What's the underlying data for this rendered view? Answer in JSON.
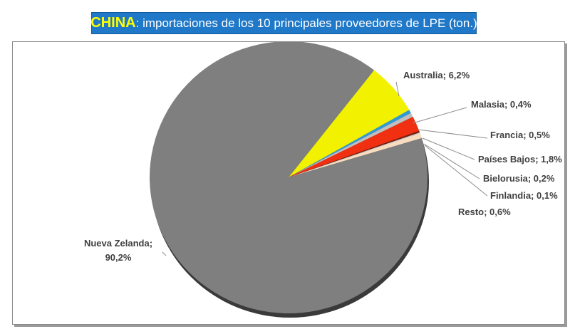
{
  "title": {
    "country": "CHINA",
    "rest": ": importaciones de los 10 principales proveedores de LPE (ton.)"
  },
  "colors": {
    "title_bg": "#1f78c8",
    "title_country": "#ffff00"
  },
  "chart_data": {
    "type": "pie",
    "title": "CHINA: importaciones de los 10 principales proveedores de LPE (ton.)",
    "legend": "none",
    "slices": [
      {
        "name": "Nueva Zelanda",
        "value": 90.2,
        "label": "Nueva Zelanda;",
        "label2": "90,2%",
        "color": "#7f7f7f"
      },
      {
        "name": "Australia",
        "value": 6.2,
        "label": "Australia; 6,2%",
        "color": "#f2f200"
      },
      {
        "name": "Malasia",
        "value": 0.4,
        "label": "Malasia; 0,4%",
        "color": "#2e9bd6"
      },
      {
        "name": "Francia",
        "value": 0.5,
        "label": "Francia; 0,5%",
        "color": "#bfbfbf"
      },
      {
        "name": "Países Bajos",
        "value": 1.8,
        "label": "Países Bajos; 1,8%",
        "color": "#f03010"
      },
      {
        "name": "Bielorusia",
        "value": 0.2,
        "label": "Bielorusia; 0,2%",
        "color": "#7a1f10"
      },
      {
        "name": "Finlandia",
        "value": 0.1,
        "label": "Finlandia; 0,1%",
        "color": "#d9d9d9"
      },
      {
        "name": "Resto",
        "value": 0.6,
        "label": "Resto; 0,6%",
        "color": "#f8dcc0"
      }
    ]
  }
}
